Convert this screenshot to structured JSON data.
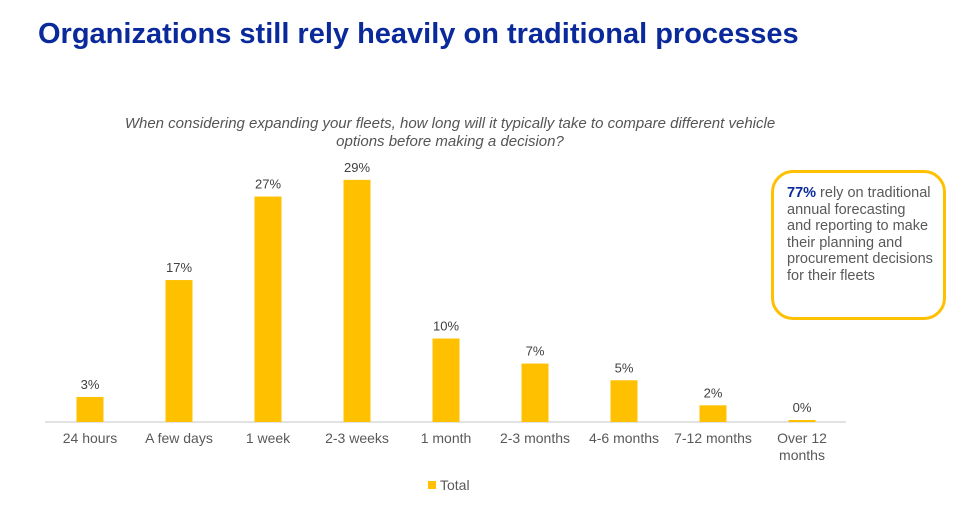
{
  "title": "Organizations still rely heavily on traditional processes",
  "chart_data": {
    "type": "bar",
    "title": "When considering expanding your fleets, how long will it typically take to compare different vehicle options before making a decision?",
    "categories": [
      "24 hours",
      "A few days",
      "1 week",
      "2-3 weeks",
      "1 month",
      "2-3 months",
      "4-6 months",
      "7-12 months",
      "Over 12 months"
    ],
    "series": [
      {
        "name": "Total",
        "values": [
          3,
          17,
          27,
          29,
          10,
          7,
          5,
          2,
          0
        ]
      }
    ],
    "data_labels": [
      "3%",
      "17%",
      "27%",
      "29%",
      "10%",
      "7%",
      "5%",
      "2%",
      "0%"
    ],
    "legend": "bottom",
    "grid": false,
    "bar_color": "#ffc000"
  },
  "callout": {
    "highlight": "77%",
    "text": " rely on traditional annual forecasting and reporting to make their planning and procurement decisions for their fleets",
    "border_color": "#ffc000"
  }
}
